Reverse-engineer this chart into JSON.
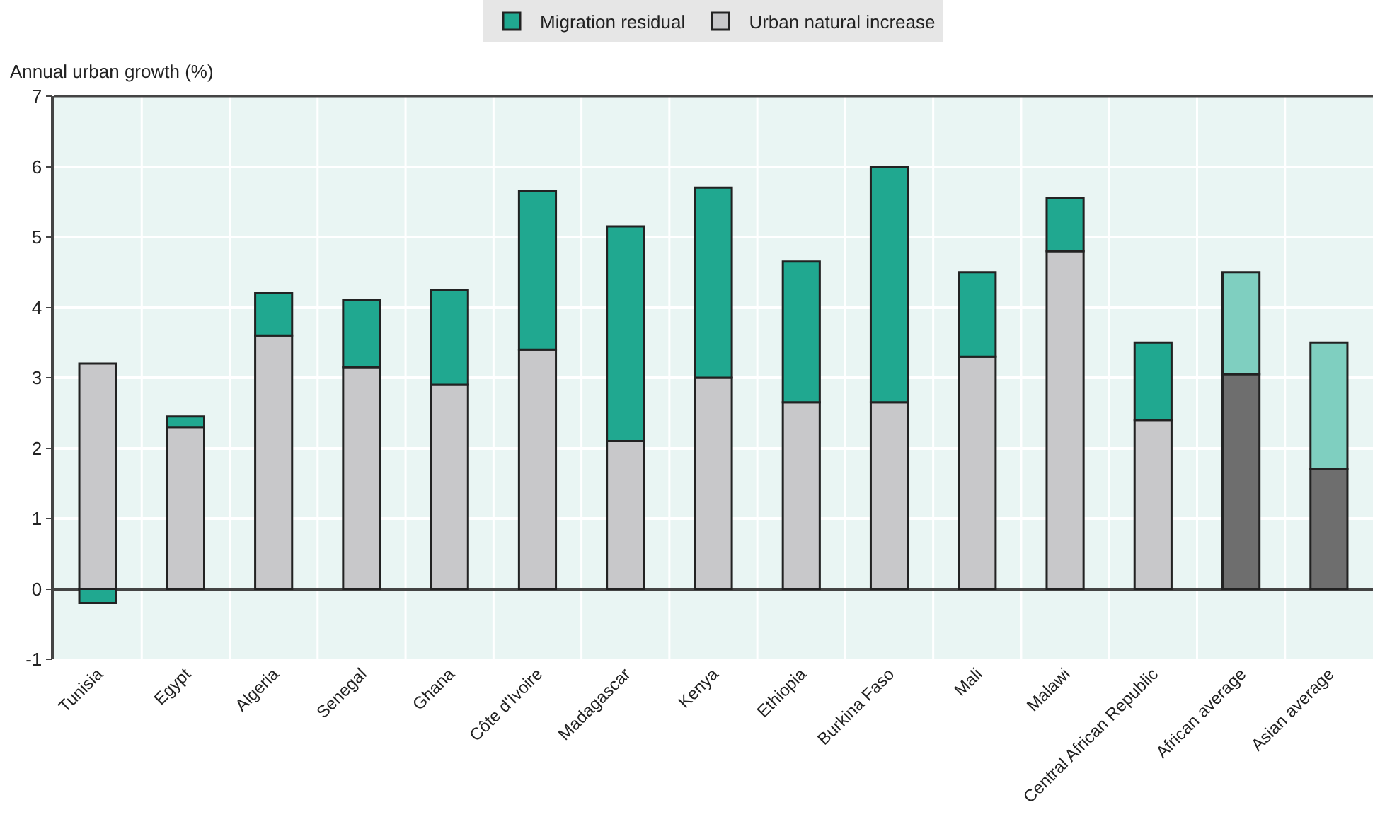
{
  "chart_data": {
    "type": "bar",
    "stacked": true,
    "ylabel": "Annual urban growth (%)",
    "categories": [
      "Tunisia",
      "Egypt",
      "Algeria",
      "Senegal",
      "Ghana",
      "Côte d'Ivoire",
      "Madagascar",
      "Kenya",
      "Ethiopia",
      "Burkina Faso",
      "Mali",
      "Malawi",
      "Central African Republic",
      "African average",
      "Asian average"
    ],
    "series": [
      {
        "name": "Urban natural increase",
        "color": "#c8c8ca",
        "colors": [
          "#c8c8ca",
          "#c8c8ca",
          "#c8c8ca",
          "#c8c8ca",
          "#c8c8ca",
          "#c8c8ca",
          "#c8c8ca",
          "#c8c8ca",
          "#c8c8ca",
          "#c8c8ca",
          "#c8c8ca",
          "#c8c8ca",
          "#c8c8ca",
          "#6e6e6e",
          "#6e6e6e"
        ],
        "values": [
          3.2,
          2.3,
          3.6,
          3.15,
          2.9,
          3.4,
          2.1,
          3.0,
          2.65,
          2.65,
          3.3,
          4.8,
          2.4,
          3.05,
          1.7
        ]
      },
      {
        "name": "Migration residual",
        "color": "#20a890",
        "colors": [
          "#20a890",
          "#20a890",
          "#20a890",
          "#20a890",
          "#20a890",
          "#20a890",
          "#20a890",
          "#20a890",
          "#20a890",
          "#20a890",
          "#20a890",
          "#20a890",
          "#20a890",
          "#7fcfc0",
          "#7fcfc0"
        ],
        "values": [
          -0.2,
          0.15,
          0.6,
          0.95,
          1.35,
          2.25,
          3.05,
          2.7,
          2.0,
          3.35,
          1.2,
          0.75,
          1.1,
          1.45,
          1.8
        ]
      }
    ],
    "ylim": [
      -1,
      7
    ],
    "yticks": [
      -1,
      0,
      1,
      2,
      3,
      4,
      5,
      6,
      7
    ],
    "grid": true,
    "legend": "top"
  }
}
